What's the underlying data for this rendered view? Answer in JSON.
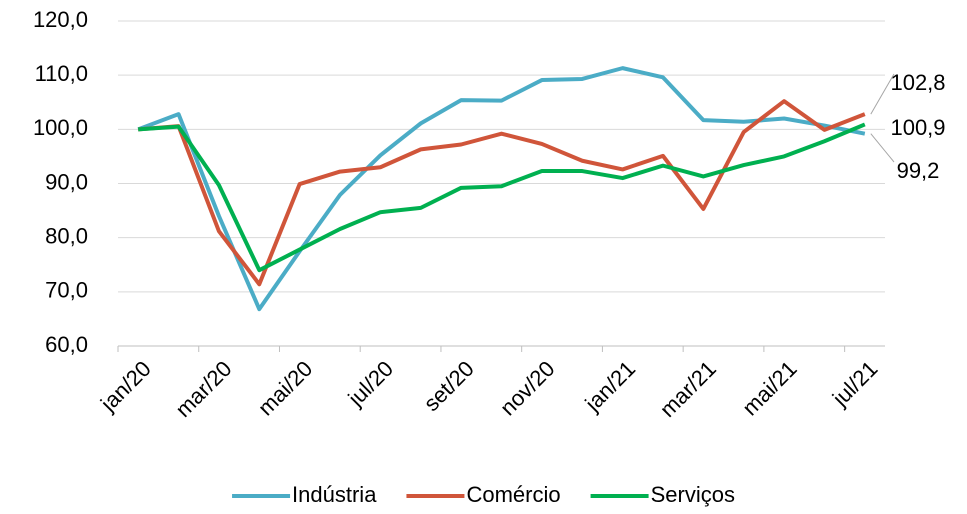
{
  "chart_data": {
    "type": "line",
    "categories": [
      "jan/20",
      null,
      "mar/20",
      null,
      "mai/20",
      null,
      "jul/20",
      null,
      "set/20",
      null,
      "nov/20",
      null,
      "jan/21",
      null,
      "mar/21",
      null,
      "mai/21",
      null,
      "jul/21"
    ],
    "series": [
      {
        "name": "Indústria",
        "color": "#4bacc6",
        "values": [
          100,
          102.8,
          84,
          66.8,
          77.5,
          87.9,
          95.2,
          101.1,
          105.4,
          105.3,
          109.1,
          109.3,
          111.3,
          109.6,
          101.7,
          101.4,
          102,
          100.7,
          99.2
        ],
        "value_labels": [
          null,
          null,
          null,
          null,
          null,
          null,
          null,
          null,
          null,
          null,
          null,
          null,
          null,
          null,
          null,
          null,
          null,
          null,
          "99,2"
        ]
      },
      {
        "name": "Comércio",
        "color": "#d0553a",
        "values": [
          100,
          100.6,
          81.2,
          71.4,
          89.9,
          92.2,
          93,
          96.3,
          97.2,
          99.2,
          97.3,
          94.2,
          92.6,
          95.1,
          85.3,
          99.5,
          105.2,
          99.9,
          102.8
        ],
        "value_labels": [
          null,
          null,
          null,
          null,
          null,
          null,
          null,
          null,
          null,
          null,
          null,
          null,
          null,
          null,
          null,
          null,
          null,
          null,
          "102,8"
        ]
      },
      {
        "name": "Serviços",
        "color": "#00b050",
        "values": [
          100,
          100.5,
          89.7,
          74,
          77.8,
          81.6,
          84.7,
          85.5,
          89.2,
          89.5,
          92.3,
          92.3,
          91,
          93.3,
          91.3,
          93.4,
          95,
          97.8,
          100.9
        ],
        "value_labels": [
          null,
          null,
          null,
          null,
          null,
          null,
          null,
          null,
          null,
          null,
          null,
          null,
          null,
          null,
          null,
          null,
          null,
          null,
          "100,9"
        ]
      }
    ],
    "ylim": [
      60,
      120
    ],
    "yticks": [
      {
        "value": 60,
        "label": "60,0"
      },
      {
        "value": 70,
        "label": "70,0"
      },
      {
        "value": 80,
        "label": "80,0"
      },
      {
        "value": 90,
        "label": "90,0"
      },
      {
        "value": 100,
        "label": "100,0"
      },
      {
        "value": 110,
        "label": "110,0"
      },
      {
        "value": 120,
        "label": "120,0"
      }
    ],
    "grid": true,
    "legend": "bottom"
  }
}
